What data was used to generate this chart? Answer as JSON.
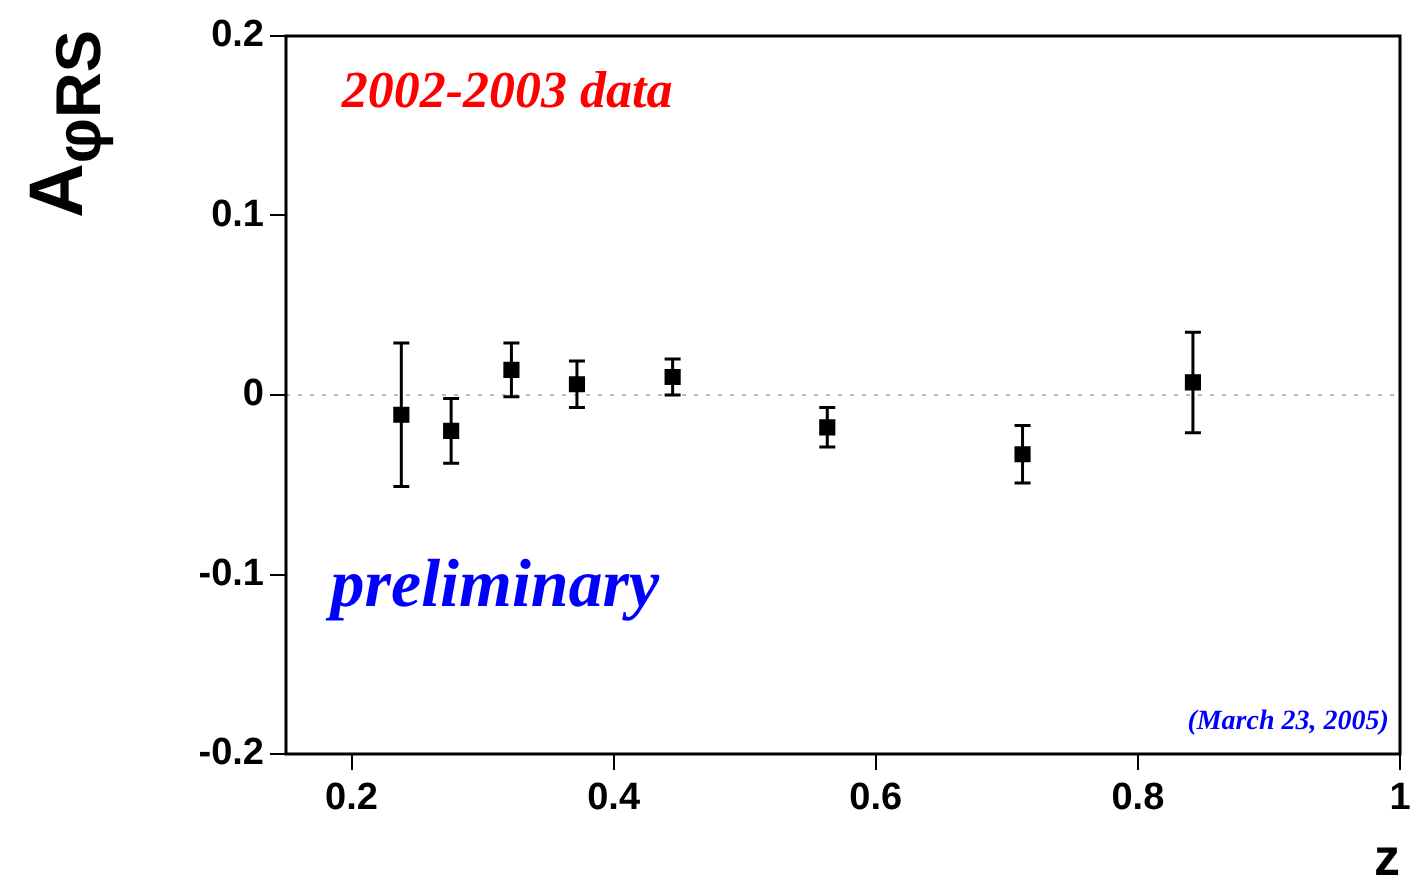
{
  "chart_data": {
    "type": "scatter",
    "xlabel": "z",
    "ylabel": "A$_{φRS}$",
    "x": [
      0.238,
      0.276,
      0.322,
      0.372,
      0.445,
      0.563,
      0.712,
      0.842
    ],
    "series": [
      {
        "color": "#000000",
        "marker": "square",
        "values": [
          -0.011,
          -0.02,
          0.014,
          0.006,
          0.01,
          -0.018,
          -0.033,
          0.007
        ],
        "errors": [
          0.04,
          0.018,
          0.015,
          0.013,
          0.01,
          0.011,
          0.016,
          0.028
        ]
      }
    ],
    "xlim": [
      0.15,
      1
    ],
    "xticks": [
      0.2,
      0.4,
      0.6,
      0.8,
      1
    ],
    "ylim": [
      -0.2,
      0.2
    ],
    "yticks": [
      -0.2,
      -0.1,
      0,
      0.1,
      0.2
    ],
    "ref_lines": [
      {
        "axis": "y",
        "value": 0,
        "color": "#bbbbbb",
        "line_style": "dotted"
      }
    ],
    "annotations": [
      "2002-2003 data",
      "preliminary",
      "(March 23, 2005)"
    ],
    "legend": false
  }
}
